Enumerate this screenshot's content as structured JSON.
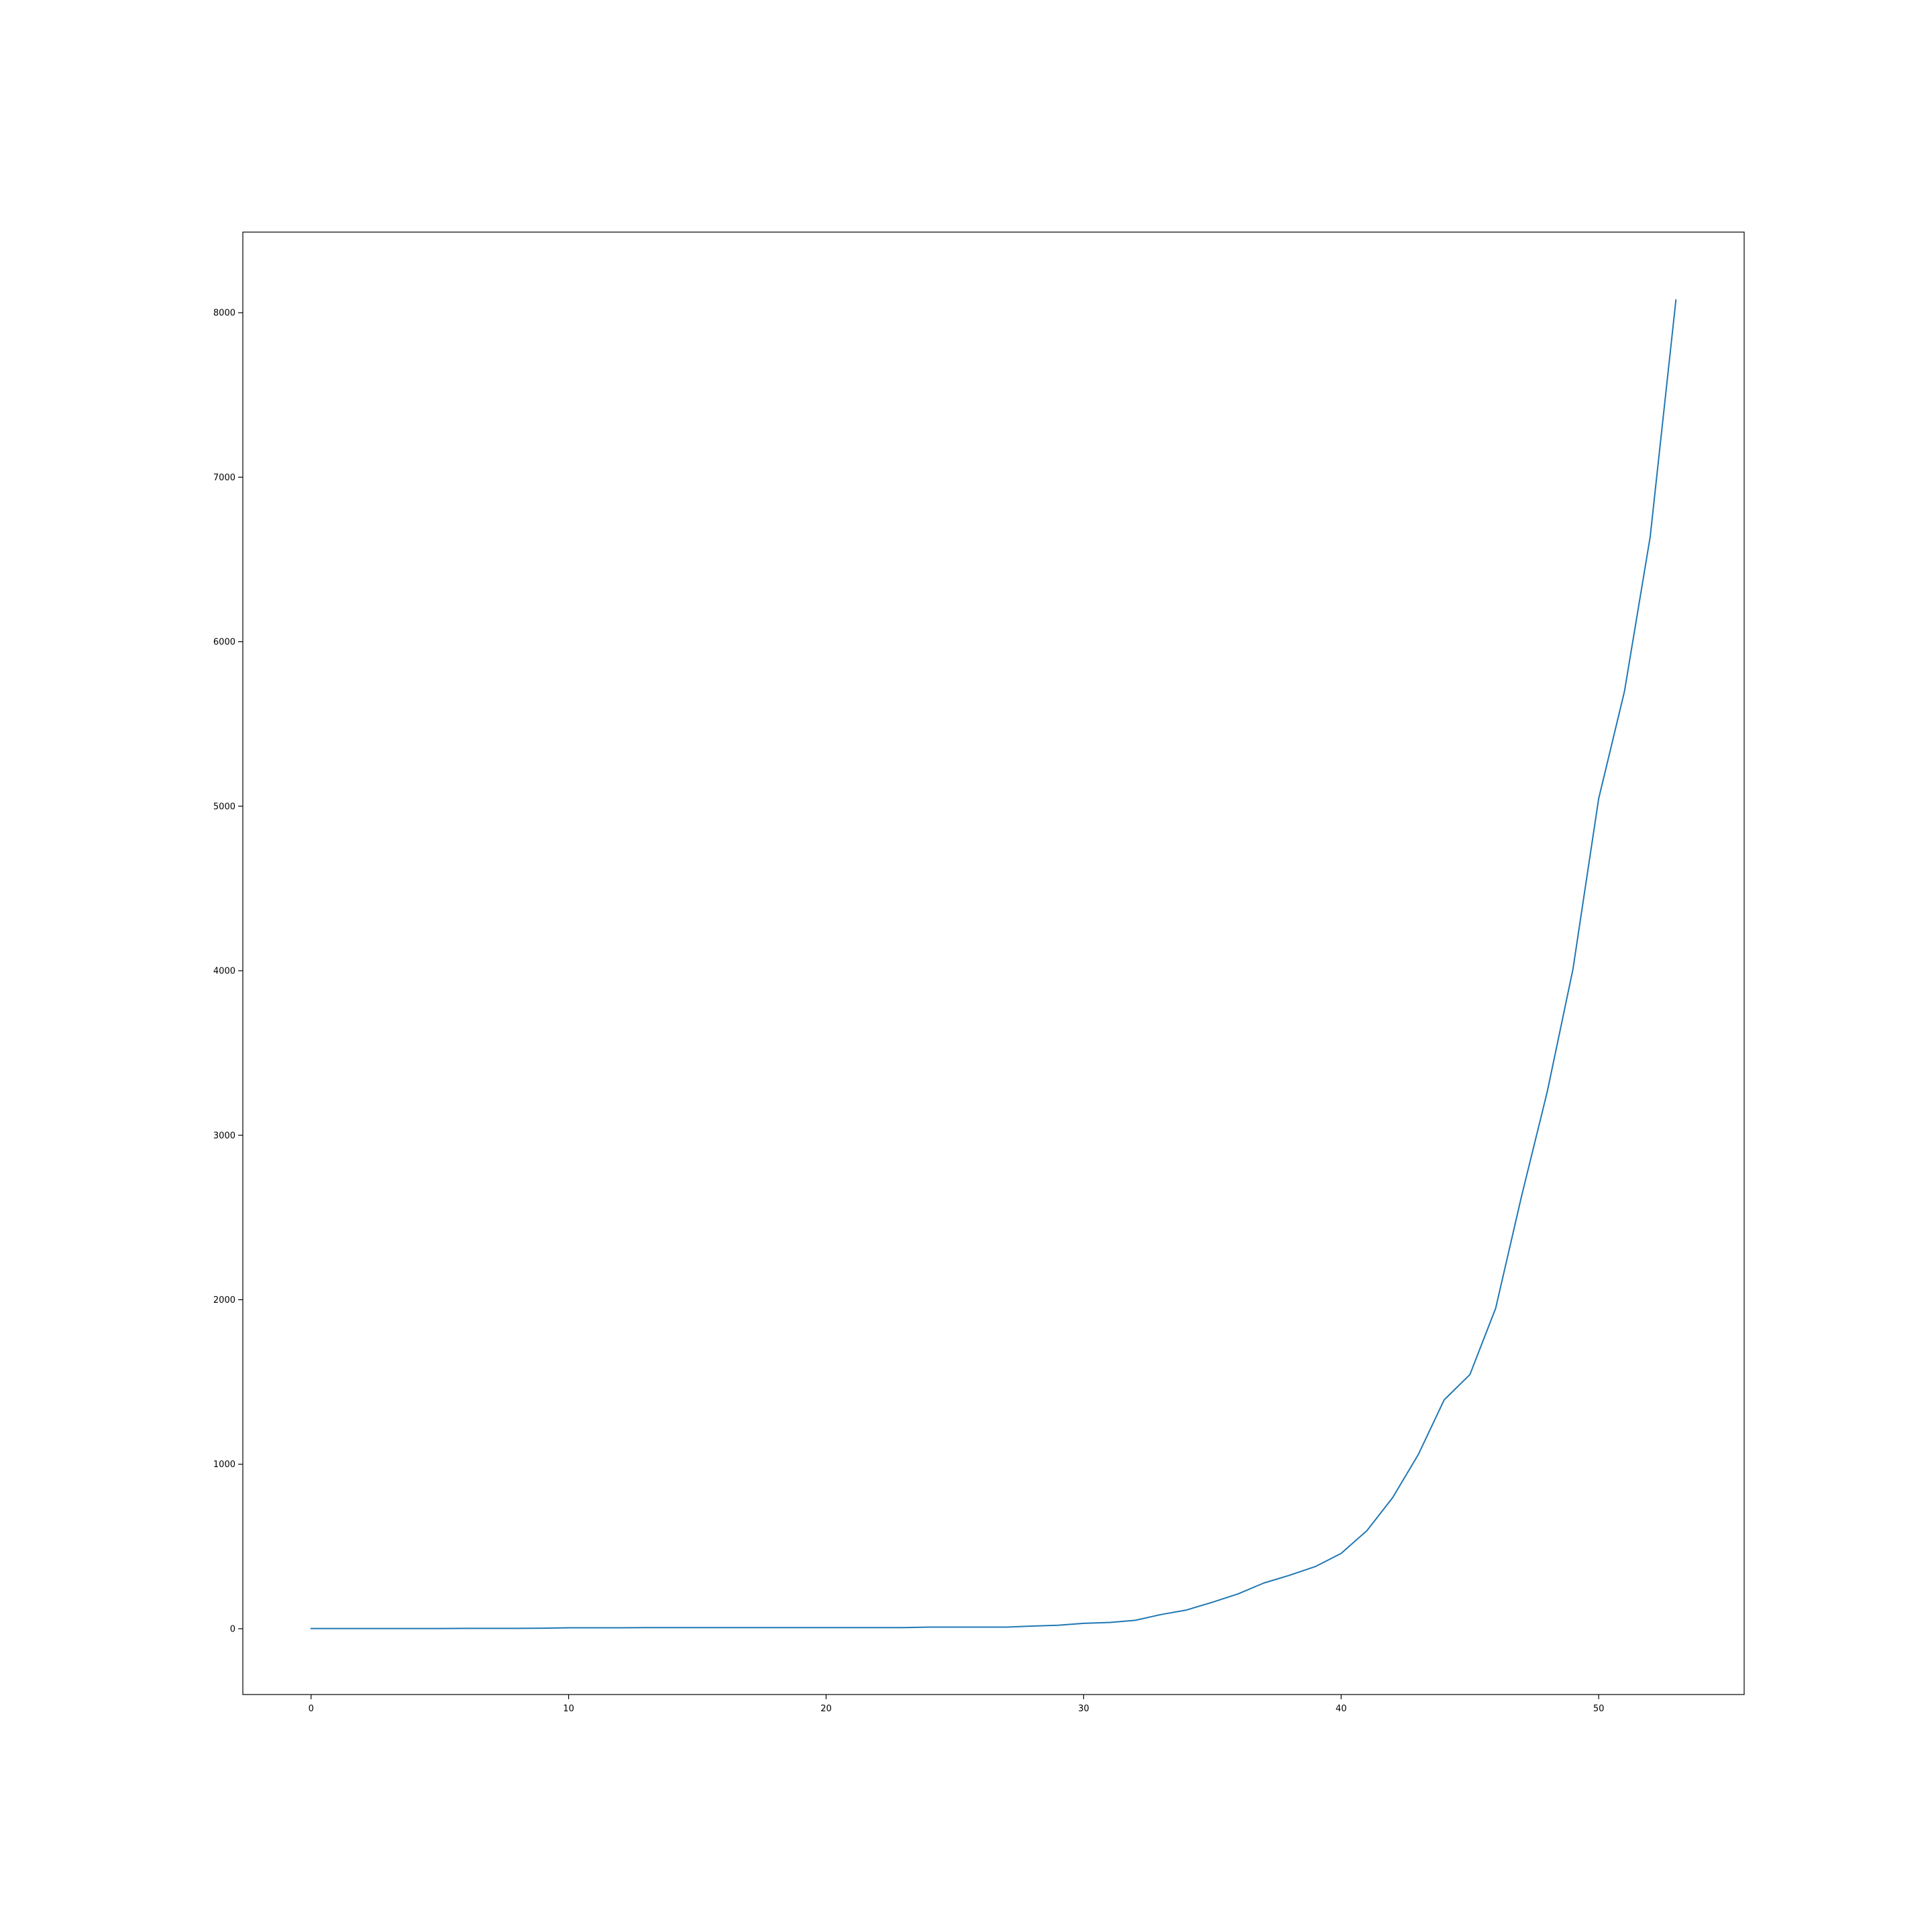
{
  "chart_data": {
    "type": "line",
    "title": "",
    "xlabel": "",
    "ylabel": "",
    "xlim": [
      -2.65,
      55.65
    ],
    "ylim": [
      -400,
      8490
    ],
    "xticks": [
      0,
      10,
      20,
      30,
      40,
      50
    ],
    "yticks": [
      0,
      1000,
      2000,
      3000,
      4000,
      5000,
      6000,
      7000,
      8000
    ],
    "grid": false,
    "legend": "none",
    "series": [
      {
        "color": "#1f77b4",
        "x": [
          0,
          1,
          2,
          3,
          4,
          5,
          6,
          7,
          8,
          9,
          10,
          11,
          12,
          13,
          14,
          15,
          16,
          17,
          18,
          19,
          20,
          21,
          22,
          23,
          24,
          25,
          26,
          27,
          28,
          29,
          30,
          31,
          32,
          33,
          34,
          35,
          36,
          37,
          38,
          39,
          40,
          41,
          42,
          43,
          44,
          45,
          46,
          47,
          48,
          49,
          50,
          51,
          52,
          53
        ],
        "y": [
          1,
          1,
          1,
          1,
          1,
          1,
          2,
          2,
          2,
          3,
          6,
          6,
          6,
          7,
          7,
          7,
          7,
          7,
          7,
          7,
          7,
          7,
          7,
          7,
          10,
          10,
          10,
          10,
          16,
          21,
          33,
          38,
          51,
          86,
          114,
          161,
          212,
          278,
          325,
          378,
          458,
          596,
          797,
          1060,
          1391,
          1545,
          1948,
          2626,
          3262,
          4008,
          5046,
          5697,
          6637,
          8077
        ]
      }
    ]
  }
}
